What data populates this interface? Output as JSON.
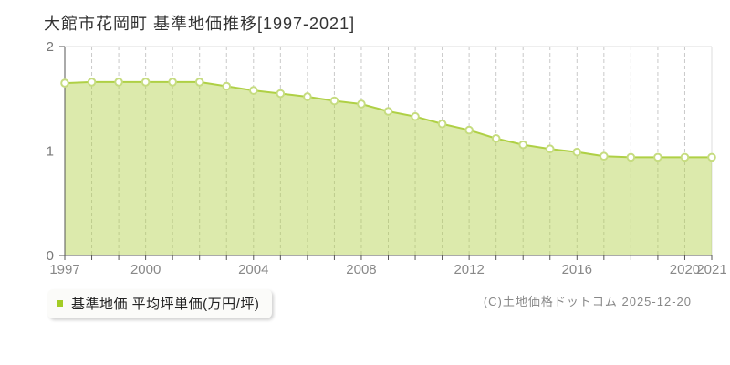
{
  "title": "大館市花岡町 基準地価推移[1997-2021]",
  "chart_data": {
    "type": "area",
    "title": "大館市花岡町 基準地価推移[1997-2021]",
    "x": [
      1997,
      1998,
      1999,
      2000,
      2001,
      2002,
      2003,
      2004,
      2005,
      2006,
      2007,
      2008,
      2009,
      2010,
      2011,
      2012,
      2013,
      2014,
      2015,
      2016,
      2017,
      2018,
      2019,
      2020,
      2021
    ],
    "series": [
      {
        "name": "基準地価 平均坪単価(万円/坪)",
        "values": [
          1.65,
          1.66,
          1.66,
          1.66,
          1.66,
          1.66,
          1.62,
          1.58,
          1.55,
          1.52,
          1.48,
          1.45,
          1.38,
          1.33,
          1.26,
          1.2,
          1.12,
          1.06,
          1.02,
          0.99,
          0.95,
          0.94,
          0.94,
          0.94,
          0.94
        ]
      }
    ],
    "ylim": [
      0,
      2
    ],
    "yticks": [
      0,
      1,
      2
    ],
    "xticks_labeled": [
      1997,
      2000,
      2004,
      2008,
      2012,
      2016,
      2020,
      2021
    ],
    "unit": "万円/坪",
    "grid": {
      "vertical": "dashed at every year",
      "horizontal": "dashed at value 1"
    },
    "legend_position": "bottom-left"
  },
  "legend": {
    "label": "基準地価 平均坪単価(万円/坪)",
    "marker_color": "#a3cc26"
  },
  "footer": {
    "copyright": "(C)土地価格ドットコム 2025-12-20"
  },
  "colors": {
    "line": "#afd045",
    "area_fill": "rgba(177,208,70,0.45)",
    "marker_fill": "#ffffff",
    "marker_stroke": "#c6dc80",
    "grid": "#c9c9c9",
    "axis": "#555555",
    "plot_border": "#dddddd",
    "x_tick_label": "#888888",
    "y_tick_label": "#777777"
  }
}
